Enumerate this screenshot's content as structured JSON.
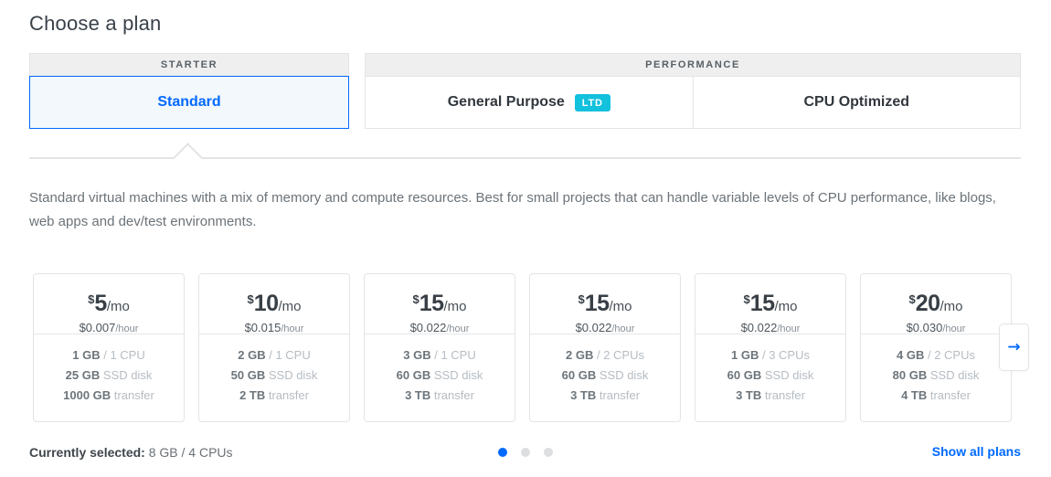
{
  "page": {
    "title": "Choose a plan"
  },
  "colors": {
    "accent_blue": "#0069ff",
    "ltd_badge_cyan": "#12c1dc",
    "selected_tab_bg": "#f3f8fd",
    "border_gray": "#e3e4e6",
    "group_header_bg": "#efefef"
  },
  "tab_groups": {
    "starter": {
      "label": "STARTER",
      "tabs": [
        {
          "label": "Standard",
          "selected": true
        }
      ]
    },
    "performance": {
      "label": "PERFORMANCE",
      "tabs": [
        {
          "label": "General Purpose",
          "badge": "LTD"
        },
        {
          "label": "CPU Optimized"
        }
      ]
    }
  },
  "description": "Standard virtual machines with a mix of memory and compute resources. Best for small projects that can handle variable levels of CPU performance, like blogs, web apps and dev/test environments.",
  "cards": [
    {
      "currency": "$",
      "monthly": "5",
      "per_month": "/mo",
      "hourly": "$0.007",
      "per_hour": "/hour",
      "ram": "1 GB",
      "cpu": "/ 1 CPU",
      "disk": "25 GB",
      "disk_label": "SSD disk",
      "transfer": "1000 GB",
      "transfer_label": "transfer"
    },
    {
      "currency": "$",
      "monthly": "10",
      "per_month": "/mo",
      "hourly": "$0.015",
      "per_hour": "/hour",
      "ram": "2 GB",
      "cpu": "/ 1 CPU",
      "disk": "50 GB",
      "disk_label": "SSD disk",
      "transfer": "2 TB",
      "transfer_label": "transfer"
    },
    {
      "currency": "$",
      "monthly": "15",
      "per_month": "/mo",
      "hourly": "$0.022",
      "per_hour": "/hour",
      "ram": "3 GB",
      "cpu": "/ 1 CPU",
      "disk": "60 GB",
      "disk_label": "SSD disk",
      "transfer": "3 TB",
      "transfer_label": "transfer"
    },
    {
      "currency": "$",
      "monthly": "15",
      "per_month": "/mo",
      "hourly": "$0.022",
      "per_hour": "/hour",
      "ram": "2 GB",
      "cpu": "/ 2 CPUs",
      "disk": "60 GB",
      "disk_label": "SSD disk",
      "transfer": "3 TB",
      "transfer_label": "transfer"
    },
    {
      "currency": "$",
      "monthly": "15",
      "per_month": "/mo",
      "hourly": "$0.022",
      "per_hour": "/hour",
      "ram": "1 GB",
      "cpu": "/ 3 CPUs",
      "disk": "60 GB",
      "disk_label": "SSD disk",
      "transfer": "3 TB",
      "transfer_label": "transfer"
    },
    {
      "currency": "$",
      "monthly": "20",
      "per_month": "/mo",
      "hourly": "$0.030",
      "per_hour": "/hour",
      "ram": "4 GB",
      "cpu": "/ 2 CPUs",
      "disk": "80 GB",
      "disk_label": "SSD disk",
      "transfer": "4 TB",
      "transfer_label": "transfer"
    }
  ],
  "carousel": {
    "next_arrow": "→",
    "pagination": {
      "total": 3,
      "active_index": 0
    }
  },
  "footer": {
    "selected_label": "Currently selected:",
    "selected_value": "8 GB / 4 CPUs",
    "show_all_label": "Show all plans"
  }
}
